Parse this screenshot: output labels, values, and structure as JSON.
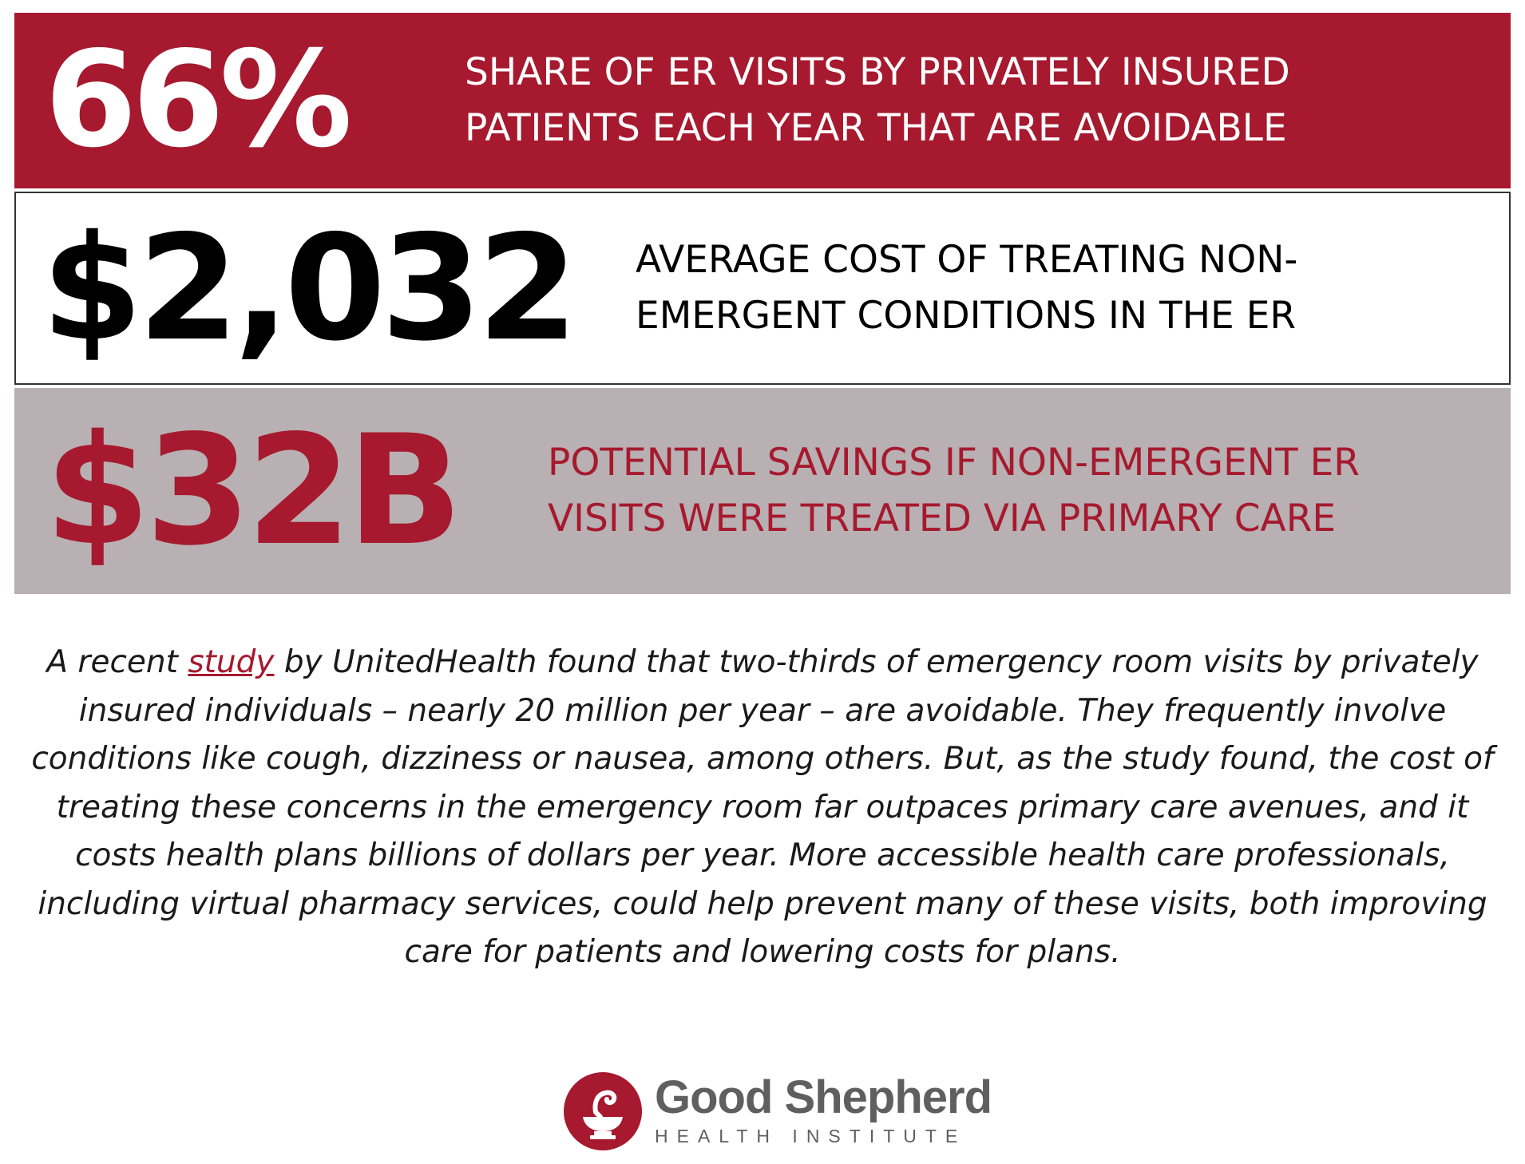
{
  "stats": [
    {
      "value": "66%",
      "caption": "SHARE OF ER VISITS BY PRIVATELY INSURED\nPATIENTS EACH YEAR THAT ARE AVOIDABLE"
    },
    {
      "value": "$2,032",
      "caption": "AVERAGE COST OF TREATING NON-\nEMERGENT CONDITIONS IN THE ER"
    },
    {
      "value": "$32B",
      "caption": "POTENTIAL SAVINGS IF NON-EMERGENT ER\nVISITS WERE TREATED VIA PRIMARY CARE"
    }
  ],
  "body": {
    "prefix": "A recent ",
    "link_text": "study",
    "suffix": " by UnitedHealth found that two-thirds of emergency room visits by privately insured individuals – nearly 20 million per year – are avoidable. They frequently involve conditions like cough, dizziness or nausea, among others. But, as the study found, the cost of treating these concerns in the emergency room far outpaces primary care avenues, and it costs health plans billions of dollars per year. More accessible health care professionals, including virtual pharmacy services, could help prevent many of these visits, both improving care for patients and lowering costs for plans."
  },
  "logo": {
    "name": "Good Shepherd",
    "subtitle": "HEALTH INSTITUTE",
    "icon": "mortar-pestle-icon"
  },
  "colors": {
    "brand_red": "#a6192e",
    "band_gray": "#b8b0b2",
    "logo_gray": "#5f5f5f"
  }
}
